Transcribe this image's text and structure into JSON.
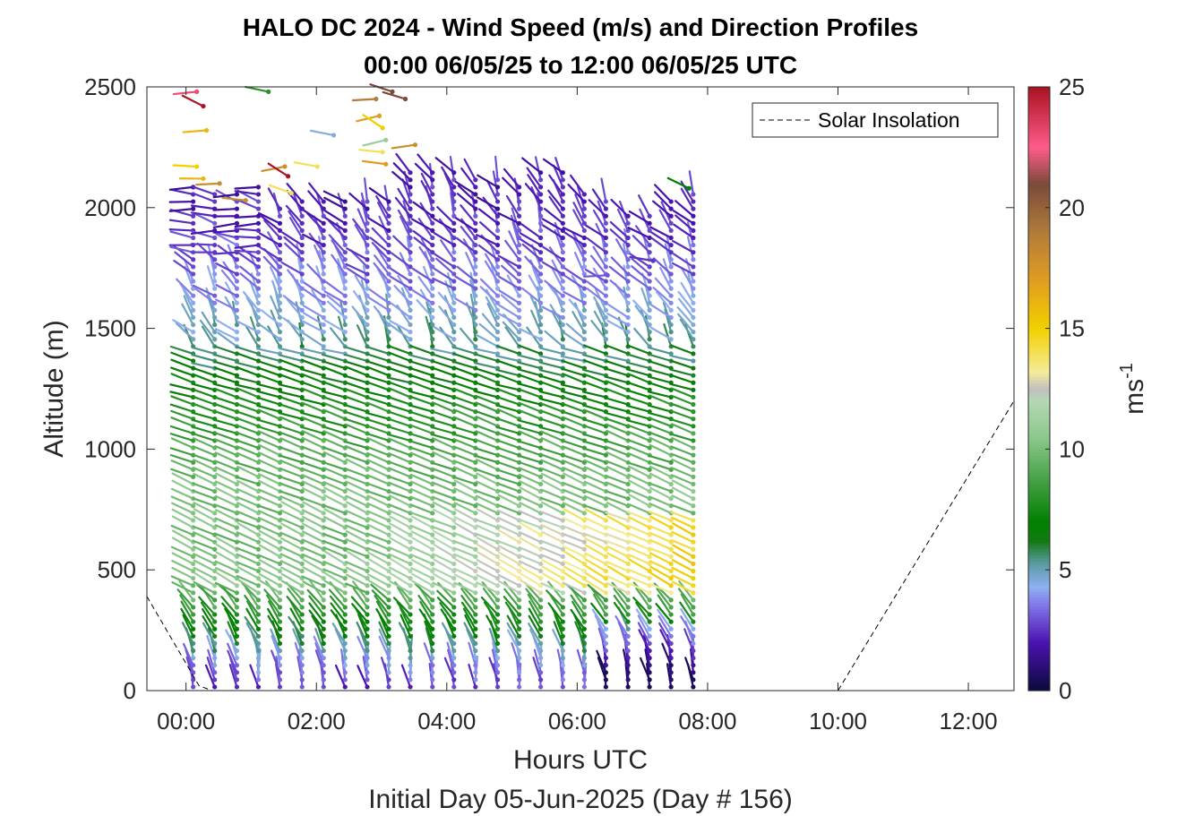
{
  "chart_data": {
    "type": "scatter",
    "title_line1": "HALO DC 2024 - Wind Speed (m/s) and Direction Profiles",
    "title_line2": "00:00 06/05/25 to 12:00 06/05/25  UTC",
    "xlabel": "Hours UTC",
    "xlabel2": "Initial Day 05-Jun-2025 (Day # 156)",
    "ylabel": "Altitude (m)",
    "x_range_hours": [
      -0.6,
      12.7
    ],
    "y_range_m": [
      0,
      2500
    ],
    "x_ticks": [
      {
        "value": 0,
        "label": "00:00"
      },
      {
        "value": 2,
        "label": "02:00"
      },
      {
        "value": 4,
        "label": "04:00"
      },
      {
        "value": 6,
        "label": "06:00"
      },
      {
        "value": 8,
        "label": "08:00"
      },
      {
        "value": 10,
        "label": "10:00"
      },
      {
        "value": 12,
        "label": "12:00"
      }
    ],
    "y_ticks": [
      {
        "value": 0,
        "label": "0"
      },
      {
        "value": 500,
        "label": "500"
      },
      {
        "value": 1000,
        "label": "1000"
      },
      {
        "value": 1500,
        "label": "1500"
      },
      {
        "value": 2000,
        "label": "2000"
      },
      {
        "value": 2500,
        "label": "2500"
      }
    ],
    "colorbar": {
      "label_base": "ms",
      "label_exp": "-1",
      "range": [
        0,
        25
      ],
      "ticks": [
        {
          "value": 0,
          "label": "0"
        },
        {
          "value": 5,
          "label": "5"
        },
        {
          "value": 10,
          "label": "10"
        },
        {
          "value": 15,
          "label": "15"
        },
        {
          "value": 20,
          "label": "20"
        },
        {
          "value": 25,
          "label": "25"
        }
      ],
      "stops": [
        {
          "v": 0,
          "c": "#0a0a3c"
        },
        {
          "v": 2,
          "c": "#4b12b0"
        },
        {
          "v": 3.5,
          "c": "#7f74e6"
        },
        {
          "v": 4.3,
          "c": "#8fb0f2"
        },
        {
          "v": 5.3,
          "c": "#5a9aa0"
        },
        {
          "v": 6.2,
          "c": "#137a13"
        },
        {
          "v": 7,
          "c": "#008000"
        },
        {
          "v": 8.5,
          "c": "#3c9c3c"
        },
        {
          "v": 10.5,
          "c": "#8cc88c"
        },
        {
          "v": 12,
          "c": "#b4d8b4"
        },
        {
          "v": 12.5,
          "c": "#bfbfbf"
        },
        {
          "v": 13.2,
          "c": "#f4ec9a"
        },
        {
          "v": 15,
          "c": "#f2d000"
        },
        {
          "v": 17,
          "c": "#e09d20"
        },
        {
          "v": 19,
          "c": "#b07c3a"
        },
        {
          "v": 21,
          "c": "#7a4a3a"
        },
        {
          "v": 22.5,
          "c": "#ff5c8a"
        },
        {
          "v": 25,
          "c": "#aa1222"
        }
      ]
    },
    "legend": {
      "label": "Solar Insolation",
      "position": "top-right"
    },
    "solar_insolation_line": {
      "x": [
        -0.6,
        0.2,
        0.4,
        10.0,
        12.7
      ],
      "y": [
        390,
        20,
        0,
        0,
        1200
      ]
    },
    "profile_times_hours": [
      0.0,
      0.33,
      0.67,
      1.0,
      1.33,
      1.67,
      2.0,
      2.33,
      2.67,
      3.0,
      3.33,
      3.67,
      4.0,
      4.33,
      4.67,
      5.0,
      5.33,
      5.67,
      6.0,
      6.33,
      6.67,
      7.0,
      7.33,
      7.67
    ],
    "profile_top_m": [
      2100,
      2060,
      2060,
      2100,
      2000,
      2040,
      2050,
      2050,
      2050,
      2050,
      2150,
      2170,
      2160,
      2130,
      2130,
      2100,
      2170,
      2170,
      2080,
      2040,
      1980,
      1990,
      2040,
      2080
    ],
    "speed_profile_reference": [
      {
        "alt": 0,
        "speed": 2.5
      },
      {
        "alt": 100,
        "speed": 3.8
      },
      {
        "alt": 250,
        "speed": 7.0
      },
      {
        "alt": 450,
        "speed": 10.5
      },
      {
        "alt": 600,
        "speed": 10.0
      },
      {
        "alt": 800,
        "speed": 10.0
      },
      {
        "alt": 1000,
        "speed": 9.0
      },
      {
        "alt": 1200,
        "speed": 7.5
      },
      {
        "alt": 1400,
        "speed": 5.5
      },
      {
        "alt": 1700,
        "speed": 3.5
      },
      {
        "alt": 2000,
        "speed": 2.2
      }
    ],
    "high_level_sparse_points": [
      {
        "x": 0.0,
        "y": 2480,
        "speed": 23
      },
      {
        "x": 0.1,
        "y": 2420,
        "speed": 25
      },
      {
        "x": 0.15,
        "y": 2320,
        "speed": 16
      },
      {
        "x": 0.0,
        "y": 2170,
        "speed": 15
      },
      {
        "x": 0.1,
        "y": 2120,
        "speed": 16
      },
      {
        "x": 0.35,
        "y": 2100,
        "speed": 18
      },
      {
        "x": 0.75,
        "y": 2030,
        "speed": 18
      },
      {
        "x": 1.1,
        "y": 2480,
        "speed": 8
      },
      {
        "x": 1.35,
        "y": 2170,
        "speed": 18
      },
      {
        "x": 1.4,
        "y": 2130,
        "speed": 25
      },
      {
        "x": 1.45,
        "y": 2060,
        "speed": 14
      },
      {
        "x": 1.85,
        "y": 2170,
        "speed": 14
      },
      {
        "x": 2.1,
        "y": 2300,
        "speed": 4.5
      },
      {
        "x": 2.75,
        "y": 2450,
        "speed": 19
      },
      {
        "x": 2.8,
        "y": 2380,
        "speed": 17
      },
      {
        "x": 2.85,
        "y": 2330,
        "speed": 15
      },
      {
        "x": 2.9,
        "y": 2280,
        "speed": 11
      },
      {
        "x": 2.85,
        "y": 2230,
        "speed": 14
      },
      {
        "x": 2.9,
        "y": 2180,
        "speed": 17
      },
      {
        "x": 3.0,
        "y": 2480,
        "speed": 21
      },
      {
        "x": 3.2,
        "y": 2450,
        "speed": 21
      },
      {
        "x": 3.35,
        "y": 2260,
        "speed": 18
      },
      {
        "x": 6.3,
        "y": 1720,
        "speed": 3
      },
      {
        "x": 7.0,
        "y": 1780,
        "speed": 2.5
      },
      {
        "x": 7.55,
        "y": 2080,
        "speed": 7
      }
    ]
  }
}
